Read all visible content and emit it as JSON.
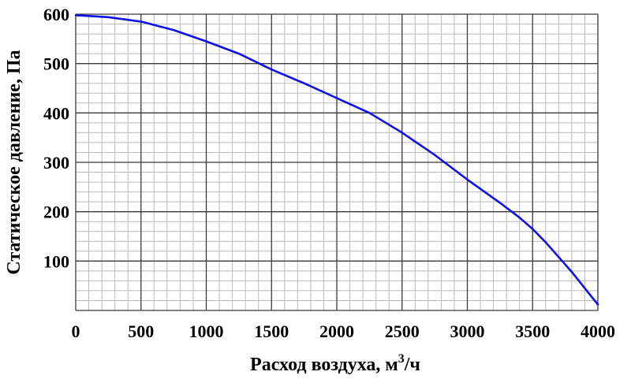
{
  "chart_data": {
    "type": "line",
    "title": "",
    "xlabel": {
      "text": "Расход воздуха, м",
      "superscript": "3",
      "suffix": "/ч"
    },
    "ylabel": "Статическое давление, Па",
    "xlim": [
      0,
      4000
    ],
    "ylim": [
      0,
      600
    ],
    "x_ticks": [
      "0",
      "500",
      "1000",
      "1500",
      "2000",
      "2500",
      "3000",
      "3500",
      "4000"
    ],
    "y_ticks": [
      "100",
      "200",
      "300",
      "400",
      "500",
      "600"
    ],
    "grid": true,
    "series": [
      {
        "color": "#1010ee",
        "x": [
          0,
          250,
          500,
          750,
          1000,
          1250,
          1500,
          1750,
          2000,
          2250,
          2500,
          2750,
          3000,
          3250,
          3400,
          3500,
          3600,
          3700,
          3800,
          3900,
          4000
        ],
        "y": [
          598,
          594,
          585,
          568,
          545,
          520,
          488,
          460,
          430,
          400,
          360,
          315,
          265,
          218,
          188,
          165,
          138,
          108,
          78,
          45,
          12
        ]
      }
    ],
    "colors": {
      "grid_major": "#3a3a3a",
      "grid_minor": "#b9b9b9",
      "line": "#1010ee"
    }
  }
}
